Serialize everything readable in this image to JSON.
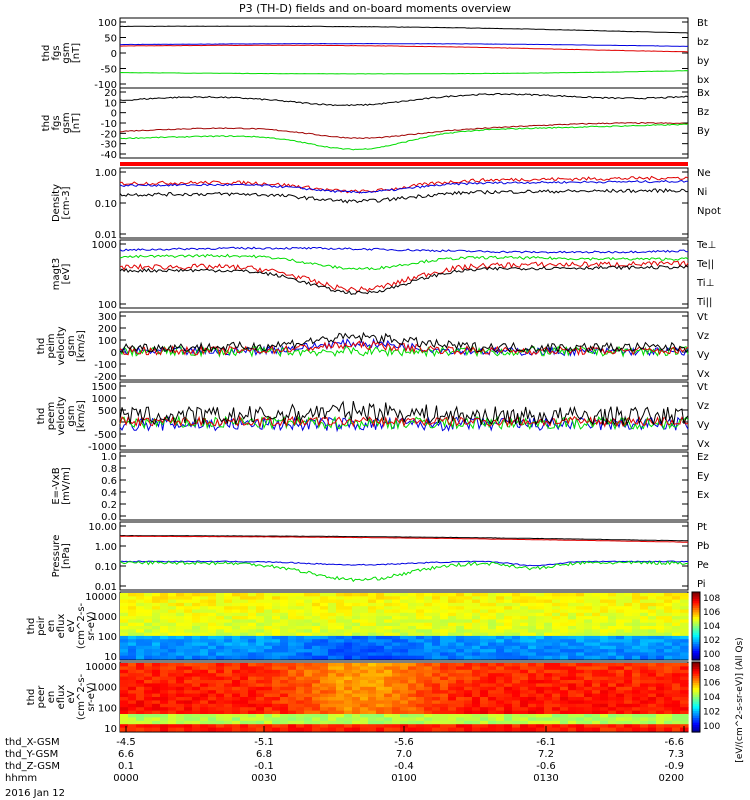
{
  "title": "P3 (TH-D) fields and on-board moments overview",
  "date_label": "2016 Jan 12",
  "orbit_rows": [
    {
      "label": "thd_X-GSM",
      "values": [
        "-4.5",
        "-5.1",
        "-5.6",
        "-6.1",
        "-6.6"
      ]
    },
    {
      "label": "thd_Y-GSM",
      "values": [
        "6.6",
        "6.8",
        "7.0",
        "7.2",
        "7.3"
      ]
    },
    {
      "label": "thd_Z-GSM",
      "values": [
        "0.1",
        "-0.1",
        "-0.4",
        "-0.6",
        "-0.9"
      ]
    },
    {
      "label": "hhmm",
      "values": [
        "0000",
        "0030",
        "0100",
        "0130",
        "0200"
      ]
    }
  ],
  "colors": {
    "black": "#000000",
    "red": "#e00000",
    "green": "#00dd00",
    "blue": "#0000e0",
    "darkred": "#a00000"
  },
  "panels": [
    {
      "name": "bfield-gsm",
      "ylabel": [
        "thd",
        "fgs",
        "gsm",
        "[nT]"
      ],
      "ticks": [
        "100",
        "50",
        "0",
        "-50",
        "-100"
      ],
      "legend": [
        {
          "t": "Bt",
          "c": "black"
        },
        {
          "t": "bz",
          "c": "red"
        },
        {
          "t": "by",
          "c": "green"
        },
        {
          "t": "bx",
          "c": "blue"
        }
      ]
    },
    {
      "name": "bfield-dsl",
      "ylabel": [
        "thd",
        "fgs",
        "gsm",
        "[nT]"
      ],
      "ticks": [
        "20",
        "10",
        "0",
        "-10",
        "-20",
        "-30",
        "-40"
      ],
      "legend": [
        {
          "t": "Bx",
          "c": "black"
        },
        {
          "t": "Bz",
          "c": "darkred"
        },
        {
          "t": "By",
          "c": "green"
        }
      ]
    },
    {
      "name": "density",
      "ylabel": [
        "Density",
        "[cm-3]"
      ],
      "ticks": [
        "1.00",
        "0.10",
        "0.01"
      ],
      "legend": [
        {
          "t": "Ne",
          "c": "red"
        },
        {
          "t": "Ni",
          "c": "black"
        },
        {
          "t": "Npot",
          "c": "blue"
        }
      ]
    },
    {
      "name": "temperature",
      "ylabel": [
        "magt3",
        "[eV]"
      ],
      "ticks": [
        "1000",
        "100"
      ],
      "legend": [
        {
          "t": "Te⊥",
          "c": "red"
        },
        {
          "t": "Te||",
          "c": "black"
        },
        {
          "t": "Ti⊥",
          "c": "green"
        },
        {
          "t": "Ti||",
          "c": "green"
        }
      ]
    },
    {
      "name": "ion-velocity",
      "ylabel": [
        "thd",
        "peim",
        "velocity",
        "gsm",
        "[km/s]"
      ],
      "ticks": [
        "300",
        "200",
        "100",
        "0",
        "-100",
        "-200"
      ],
      "legend": [
        {
          "t": "Vt",
          "c": "black"
        },
        {
          "t": "Vz",
          "c": "red"
        },
        {
          "t": "Vy",
          "c": "green"
        },
        {
          "t": "Vx",
          "c": "blue"
        }
      ]
    },
    {
      "name": "electron-velocity",
      "ylabel": [
        "thd",
        "peem",
        "velocity",
        "gsm",
        "[km/s]"
      ],
      "ticks": [
        "1500",
        "1000",
        "500",
        "0",
        "-500",
        "-1000"
      ],
      "legend": [
        {
          "t": "Vt",
          "c": "black"
        },
        {
          "t": "Vz",
          "c": "red"
        },
        {
          "t": "Vy",
          "c": "green"
        },
        {
          "t": "Vx",
          "c": "blue"
        }
      ]
    },
    {
      "name": "efield",
      "ylabel": [
        "E=-VxB",
        "[mV/m]"
      ],
      "ticks": [
        "1.0",
        "0.8",
        "0.6",
        "0.4",
        "0.2",
        "0.0"
      ],
      "legend": [
        {
          "t": "Ez",
          "c": "red"
        },
        {
          "t": "Ey",
          "c": "green"
        },
        {
          "t": "Ex",
          "c": "blue"
        }
      ]
    },
    {
      "name": "pressure",
      "ylabel": [
        "Pressure",
        "[nPa]"
      ],
      "ticks": [
        "10.00",
        "1.00",
        "0.10",
        "0.01"
      ],
      "legend": [
        {
          "t": "Pt",
          "c": "black"
        },
        {
          "t": "Pb",
          "c": "red"
        },
        {
          "t": "Pe",
          "c": "green"
        },
        {
          "t": "Pi",
          "c": "blue"
        }
      ]
    },
    {
      "name": "ion-spectrogram",
      "ylabel": [
        "thd",
        "peir",
        "en",
        "eflux",
        "eV",
        "(cm^2-s-",
        "sr-eV)"
      ],
      "ticks": [
        "10000",
        "1000",
        "100",
        "10"
      ],
      "legend": []
    },
    {
      "name": "electron-spectrogram",
      "ylabel": [
        "thd",
        "peer",
        "en",
        "eflux",
        "eV",
        "(cm^2-s-",
        "sr-eV)"
      ],
      "ticks": [
        "10000",
        "1000",
        "100",
        "10"
      ],
      "legend": []
    }
  ],
  "colorbar_ticks": [
    "10^8",
    "10^6",
    "10^4",
    "10^2",
    "10^0",
    "10^8",
    "10^6",
    "10^4",
    "10^2",
    "10^0"
  ],
  "colorbar_label": "[eV/(cm^2-s-sr-eV)] (All Qs)",
  "chart_data": {
    "type": "line",
    "title": "P3 (TH-D) fields and on-board moments overview",
    "x": [
      "0000",
      "0030",
      "0100",
      "0130",
      "0200"
    ],
    "xlabel": "hhmm",
    "series": [
      {
        "name": "Bt",
        "values": [
          75,
          80,
          70,
          60,
          50
        ]
      },
      {
        "name": "bz",
        "values": [
          20,
          25,
          20,
          15,
          10
        ]
      },
      {
        "name": "by",
        "values": [
          -50,
          -70,
          -65,
          -55,
          -40
        ]
      },
      {
        "name": "bx",
        "values": [
          18,
          25,
          25,
          22,
          20
        ]
      },
      {
        "name": "Ne",
        "values": [
          0.6,
          0.25,
          0.3,
          0.3,
          0.35
        ]
      },
      {
        "name": "Pb",
        "values": [
          1.8,
          2.0,
          1.8,
          1.4,
          1.1
        ]
      }
    ]
  }
}
